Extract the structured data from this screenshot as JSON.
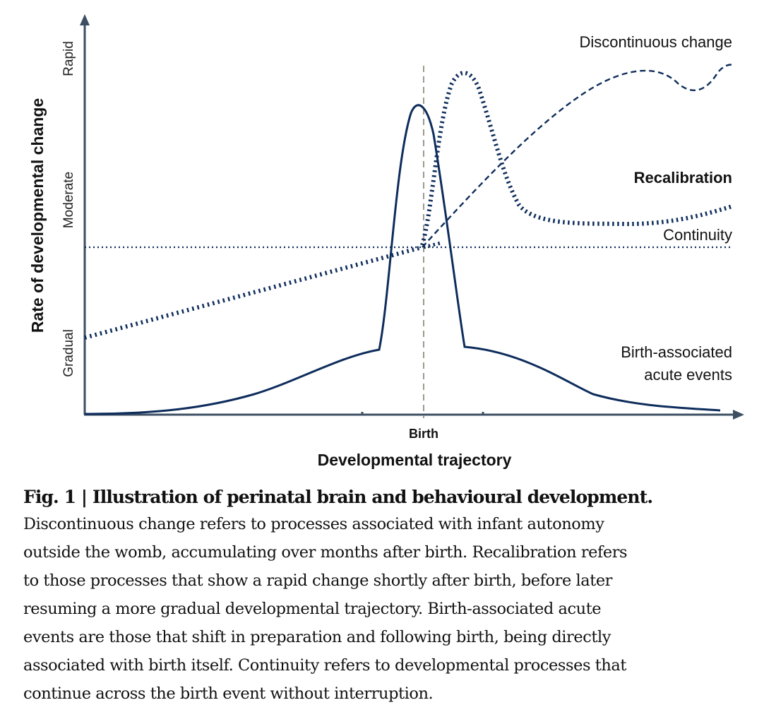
{
  "figure": {
    "y_axis_title": "Rate of developmental change",
    "y_levels": {
      "rapid": "Rapid",
      "moderate": "Moderate",
      "gradual": "Gradual"
    },
    "x_axis_title": "Developmental trajectory",
    "birth_label": "Birth",
    "curves": {
      "discontinuous": "Discontinuous change",
      "recalibration": "Recalibration",
      "continuity": "Continuity",
      "acute_line1": "Birth-associated",
      "acute_line2": "acute events"
    },
    "colors": {
      "line": "#0e2d5c",
      "axis": "#3d4f63",
      "birth_marker": "#9a9a8e"
    }
  },
  "caption": {
    "title": "Fig. 1 | Illustration of perinatal brain and behavioural development.",
    "lines": [
      "Discontinuous change refers to processes associated with infant autonomy",
      "outside the womb, accumulating over months after birth. Recalibration refers",
      "to those processes that show a rapid change shortly after birth, before later",
      "resuming a more gradual developmental trajectory. Birth-associated acute",
      "events are those that shift in preparation and following birth, being directly",
      "associated with birth itself. Continuity refers to developmental processes that",
      "continue across the birth event without interruption."
    ]
  }
}
